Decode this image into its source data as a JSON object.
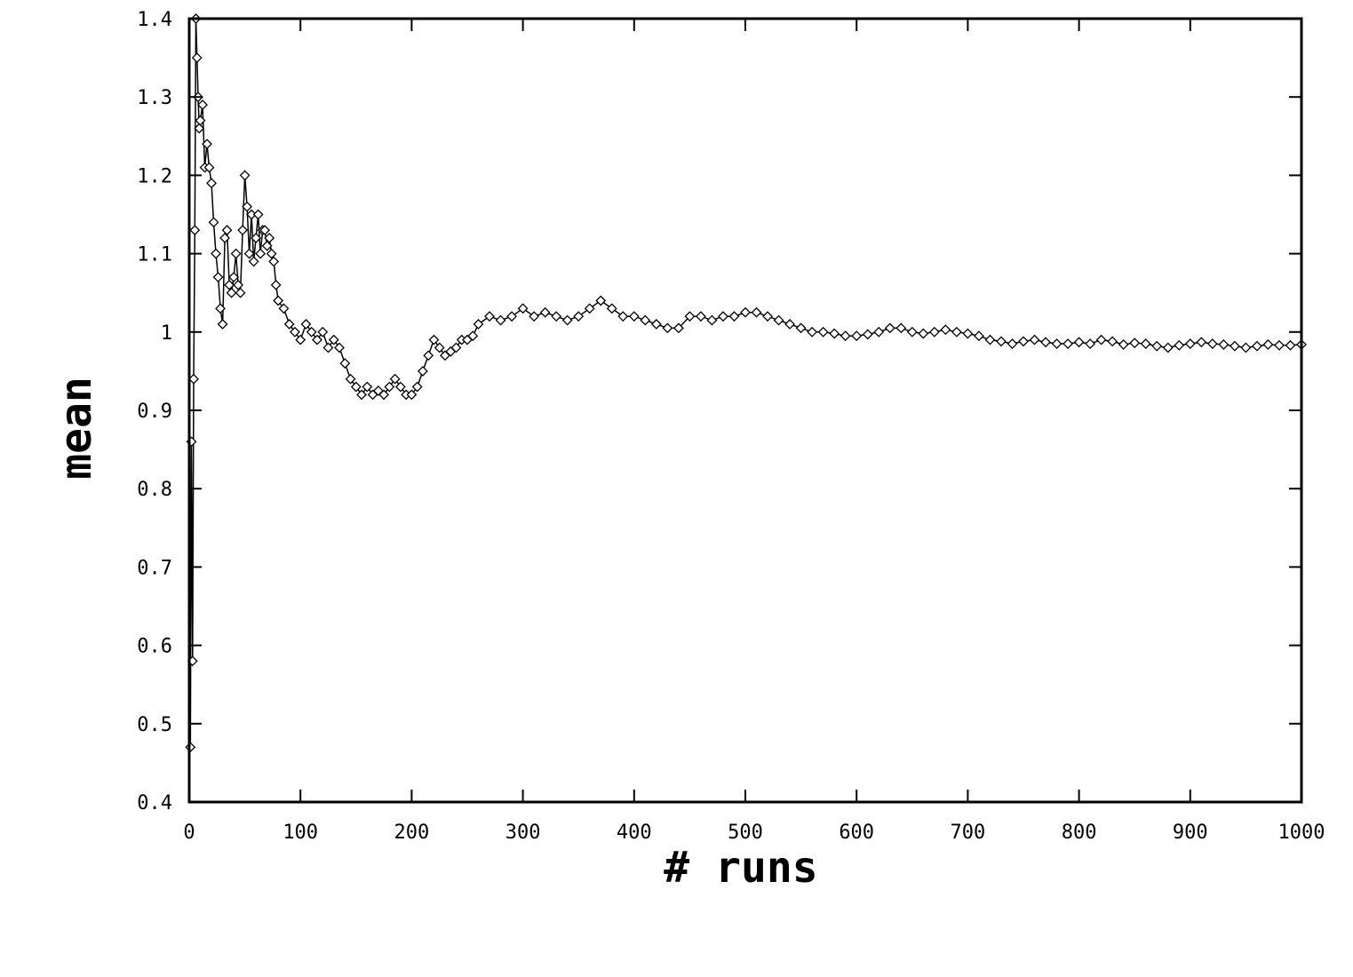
{
  "chart_data": {
    "type": "line",
    "title": "",
    "xlabel": "# runs",
    "ylabel": "mean",
    "xlim": [
      0,
      1000
    ],
    "ylim": [
      0.4,
      1.4
    ],
    "xticks": [
      0,
      100,
      200,
      300,
      400,
      500,
      600,
      700,
      800,
      900,
      1000
    ],
    "yticks": [
      0.4,
      0.5,
      0.6,
      0.7,
      0.8,
      0.9,
      1,
      1.1,
      1.2,
      1.3,
      1.4
    ],
    "xtick_labels": [
      "0",
      "100",
      "200",
      "300",
      "400",
      "500",
      "600",
      "700",
      "800",
      "900",
      "1000"
    ],
    "ytick_labels": [
      "0.4",
      "0.5",
      "0.6",
      "0.7",
      "0.8",
      "0.9",
      "1",
      "1.1",
      "1.2",
      "1.3",
      "1.4"
    ],
    "grid": false,
    "legend": "none",
    "marker": "diamond",
    "color": "#000000",
    "series": [
      {
        "x": [
          1,
          2,
          3,
          4,
          5,
          6,
          7,
          8,
          9,
          10,
          12,
          14,
          16,
          18,
          20,
          22,
          24,
          26,
          28,
          30,
          32,
          34,
          36,
          38,
          40,
          42,
          44,
          46,
          48,
          50,
          52,
          54,
          56,
          58,
          60,
          62,
          64,
          66,
          68,
          70,
          72,
          74,
          76,
          78,
          80,
          85,
          90,
          95,
          100,
          105,
          110,
          115,
          120,
          125,
          130,
          135,
          140,
          145,
          150,
          155,
          160,
          165,
          170,
          175,
          180,
          185,
          190,
          195,
          200,
          205,
          210,
          215,
          220,
          225,
          230,
          235,
          240,
          245,
          250,
          255,
          260,
          270,
          280,
          290,
          300,
          310,
          320,
          330,
          340,
          350,
          360,
          370,
          380,
          390,
          400,
          410,
          420,
          430,
          440,
          450,
          460,
          470,
          480,
          490,
          500,
          510,
          520,
          530,
          540,
          550,
          560,
          570,
          580,
          590,
          600,
          610,
          620,
          630,
          640,
          650,
          660,
          670,
          680,
          690,
          700,
          710,
          720,
          730,
          740,
          750,
          760,
          770,
          780,
          790,
          800,
          810,
          820,
          830,
          840,
          850,
          860,
          870,
          880,
          890,
          900,
          910,
          920,
          930,
          940,
          950,
          960,
          970,
          980,
          990,
          1000
        ],
        "y": [
          0.47,
          0.86,
          0.58,
          0.94,
          1.13,
          1.4,
          1.35,
          1.3,
          1.26,
          1.27,
          1.29,
          1.21,
          1.24,
          1.21,
          1.19,
          1.14,
          1.1,
          1.07,
          1.03,
          1.01,
          1.12,
          1.13,
          1.06,
          1.05,
          1.07,
          1.1,
          1.06,
          1.05,
          1.13,
          1.2,
          1.16,
          1.1,
          1.15,
          1.09,
          1.12,
          1.15,
          1.1,
          1.13,
          1.13,
          1.11,
          1.12,
          1.1,
          1.09,
          1.06,
          1.04,
          1.03,
          1.01,
          1.0,
          0.99,
          1.01,
          1.0,
          0.99,
          1.0,
          0.98,
          0.99,
          0.98,
          0.96,
          0.94,
          0.93,
          0.92,
          0.93,
          0.92,
          0.925,
          0.92,
          0.93,
          0.94,
          0.93,
          0.92,
          0.92,
          0.93,
          0.95,
          0.97,
          0.99,
          0.98,
          0.97,
          0.975,
          0.98,
          0.99,
          0.99,
          0.995,
          1.01,
          1.02,
          1.015,
          1.02,
          1.03,
          1.02,
          1.025,
          1.02,
          1.015,
          1.02,
          1.03,
          1.04,
          1.03,
          1.02,
          1.02,
          1.015,
          1.01,
          1.005,
          1.005,
          1.02,
          1.02,
          1.015,
          1.02,
          1.02,
          1.025,
          1.025,
          1.02,
          1.015,
          1.01,
          1.005,
          1.0,
          1.0,
          0.998,
          0.995,
          0.995,
          0.997,
          1.0,
          1.005,
          1.005,
          1.0,
          0.998,
          1.0,
          1.003,
          1.0,
          0.998,
          0.995,
          0.99,
          0.988,
          0.985,
          0.988,
          0.99,
          0.987,
          0.985,
          0.985,
          0.987,
          0.985,
          0.99,
          0.988,
          0.984,
          0.986,
          0.985,
          0.982,
          0.98,
          0.983,
          0.985,
          0.987,
          0.985,
          0.984,
          0.982,
          0.98,
          0.982,
          0.984,
          0.983,
          0.983,
          0.984
        ]
      }
    ]
  }
}
